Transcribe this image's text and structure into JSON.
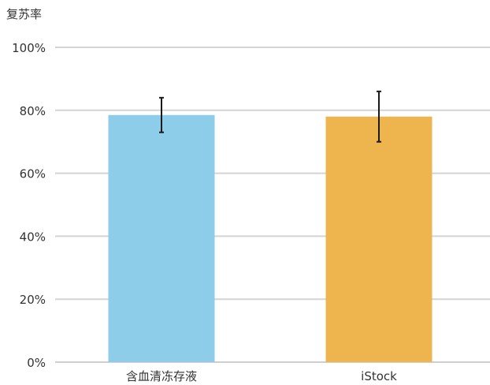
{
  "chart_data": {
    "type": "bar",
    "title": "",
    "ylabel": "复苏率",
    "xlabel": "",
    "categories": [
      "含血清冻存液",
      "iStock"
    ],
    "values": [
      78.5,
      78
    ],
    "error": [
      {
        "low": 73,
        "high": 84
      },
      {
        "low": 70,
        "high": 86
      }
    ],
    "colors": [
      "#8ecdea",
      "#eeb54f"
    ],
    "ylim": [
      0,
      100
    ],
    "yticks": [
      0,
      20,
      40,
      60,
      80,
      100
    ],
    "ytick_labels": [
      "0%",
      "20%",
      "40%",
      "60%",
      "80%",
      "100%"
    ],
    "grid": true,
    "legend": "none"
  }
}
